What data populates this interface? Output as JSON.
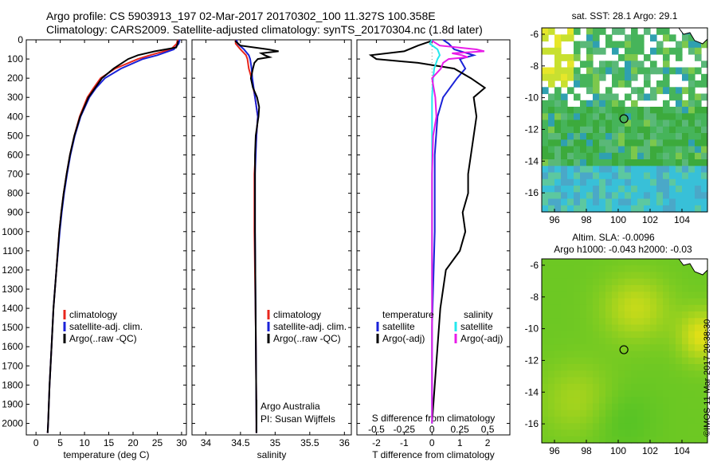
{
  "header": {
    "line1": "Argo profile: CS 5903913_197 02-Mar-2017 20170302_100 11.327S 100.358E",
    "line2": "Climatology: CARS2009. Satellite-adjusted climatology: synTS_20170304.nc (1.8d later)"
  },
  "footer": {
    "stamp": "©IMOS 11-Mar-2017 20:38:30",
    "credit1": "Argo Australia",
    "credit2": "PI: Susan Wijffels"
  },
  "colors": {
    "climatology": "#e8261c",
    "satellite": "#1a22d8",
    "argo": "#000000",
    "sal_satellite": "#25e8ee",
    "sal_argo": "#e81ce8"
  },
  "chart_data": [
    {
      "type": "line",
      "panel": "temperature",
      "xlabel": "temperature (deg C)",
      "ylabel": "",
      "xlim": [
        -2,
        31
      ],
      "ylim": [
        2060,
        0
      ],
      "xticks": [
        0,
        5,
        10,
        15,
        20,
        25,
        30
      ],
      "yticks": [
        0,
        100,
        200,
        300,
        400,
        500,
        600,
        700,
        800,
        900,
        1000,
        1100,
        1200,
        1300,
        1400,
        1500,
        1600,
        1700,
        1800,
        1900,
        2000
      ],
      "legend": [
        "climatology",
        "satellite-adj. clim.",
        "Argo(..raw -QC)"
      ],
      "legend_position": "lower-right",
      "series": [
        {
          "name": "climatology",
          "depth": [
            0,
            20,
            50,
            80,
            100,
            150,
            200,
            250,
            300,
            400,
            500,
            600,
            700,
            800,
            900,
            1000,
            1200,
            1400,
            1600,
            1800,
            2000,
            2050
          ],
          "values": [
            29.2,
            29.0,
            27.8,
            23.5,
            21.0,
            16.3,
            13.3,
            11.9,
            10.6,
            9.0,
            7.9,
            7.0,
            6.3,
            5.7,
            5.2,
            4.8,
            4.2,
            3.6,
            3.2,
            2.8,
            2.5,
            2.4
          ]
        },
        {
          "name": "satellite-adj. clim.",
          "depth": [
            0,
            20,
            50,
            80,
            100,
            150,
            200,
            250,
            300,
            400,
            500,
            600,
            700,
            800,
            900,
            1000,
            1200,
            1400,
            1600,
            1800,
            2000,
            2050
          ],
          "values": [
            29.6,
            29.4,
            28.4,
            25.0,
            22.0,
            17.5,
            14.2,
            12.4,
            11.0,
            9.2,
            8.0,
            7.1,
            6.4,
            5.8,
            5.3,
            4.9,
            4.2,
            3.6,
            3.2,
            2.8,
            2.5,
            2.4
          ]
        },
        {
          "name": "Argo(..raw -QC)",
          "depth": [
            5,
            20,
            40,
            60,
            80,
            100,
            150,
            200,
            250,
            300,
            400,
            500,
            600,
            700,
            800,
            900,
            1000,
            1200,
            1400,
            1600,
            1800,
            2000,
            2050
          ],
          "values": [
            29.3,
            29.2,
            28.9,
            24.5,
            21.0,
            19.0,
            16.0,
            13.6,
            12.2,
            10.8,
            9.1,
            7.9,
            7.0,
            6.3,
            5.7,
            5.2,
            4.8,
            4.2,
            3.6,
            3.2,
            2.8,
            2.5,
            2.4
          ]
        }
      ]
    },
    {
      "type": "line",
      "panel": "salinity",
      "xlabel": "salinity",
      "ylabel": "",
      "xlim": [
        33.8,
        36.1
      ],
      "ylim": [
        2060,
        0
      ],
      "xticks": [
        34,
        34.5,
        35,
        35.5,
        36
      ],
      "legend": [
        "climatology",
        "satellite-adj. clim.",
        "Argo(..raw -QC)"
      ],
      "legend_position": "lower-right",
      "series": [
        {
          "name": "climatology",
          "depth": [
            0,
            20,
            50,
            80,
            100,
            150,
            200,
            300,
            400,
            500,
            700,
            1000,
            1500,
            2000,
            2050
          ],
          "values": [
            34.43,
            34.43,
            34.5,
            34.58,
            34.6,
            34.62,
            34.66,
            34.71,
            34.75,
            34.73,
            34.7,
            34.7,
            34.72,
            34.73,
            34.73
          ]
        },
        {
          "name": "satellite-adj. clim.",
          "depth": [
            0,
            20,
            50,
            80,
            100,
            150,
            200,
            300,
            400,
            500,
            700,
            1000,
            1500,
            2000,
            2050
          ],
          "values": [
            34.44,
            34.46,
            34.55,
            34.62,
            34.64,
            34.66,
            34.67,
            34.71,
            34.75,
            34.73,
            34.71,
            34.71,
            34.72,
            34.73,
            34.73
          ]
        },
        {
          "name": "Argo(..raw -QC)",
          "depth": [
            5,
            30,
            50,
            60,
            70,
            80,
            90,
            100,
            120,
            150,
            200,
            250,
            300,
            350,
            400,
            450,
            500,
            600,
            800,
            1000,
            1500,
            2000,
            2050
          ],
          "values": [
            34.42,
            34.5,
            34.9,
            35.05,
            34.8,
            34.85,
            34.92,
            34.75,
            34.7,
            34.68,
            34.65,
            34.68,
            34.74,
            34.77,
            34.76,
            34.74,
            34.72,
            34.71,
            34.71,
            34.71,
            34.72,
            34.73,
            34.73
          ]
        }
      ]
    },
    {
      "type": "line",
      "panel": "difference",
      "xlabel": "T difference from climatology",
      "xlabel_top": "S difference from climatology",
      "xlim": [
        -2.7,
        2.8
      ],
      "ylim": [
        2060,
        0
      ],
      "xticks": [
        -2,
        -1,
        0,
        1,
        2
      ],
      "xticks_top_labels": [
        "-0.5",
        "-0.25",
        "0",
        "0.25",
        "0.5"
      ],
      "legend": [
        "temperature",
        "satellite",
        "Argo(-adj)",
        "salinity",
        "satellite",
        "Argo(-adj)"
      ],
      "legend_position": "lower-center",
      "series": [
        {
          "name": "satellite",
          "variable": "temperature",
          "depth": [
            0,
            20,
            50,
            80,
            100,
            150,
            200,
            300,
            400,
            600,
            800,
            1000,
            1500,
            2000
          ],
          "values": [
            0.4,
            0.6,
            0.8,
            1.5,
            1.0,
            1.2,
            0.9,
            0.4,
            0.2,
            0.1,
            0.1,
            0.1,
            0.0,
            0.0
          ]
        },
        {
          "name": "Argo(-adj)",
          "variable": "temperature",
          "depth": [
            5,
            30,
            60,
            80,
            100,
            120,
            150,
            200,
            250,
            300,
            400,
            500,
            600,
            700,
            800,
            900,
            1000,
            1100,
            1200,
            1400,
            1600,
            1800,
            2000
          ],
          "values": [
            0.0,
            -0.5,
            -1.0,
            -2.2,
            -2.0,
            -0.5,
            0.8,
            1.4,
            1.9,
            1.5,
            1.6,
            1.5,
            1.4,
            1.3,
            1.3,
            1.1,
            1.2,
            1.0,
            0.5,
            0.3,
            0.2,
            0.1,
            0.0
          ]
        },
        {
          "name": "satellite",
          "variable": "salinity",
          "depth": [
            0,
            20,
            50,
            80,
            100,
            150,
            200,
            300,
            400,
            600,
            800,
            1000,
            1500,
            2000
          ],
          "values": [
            0.0,
            -0.02,
            0.05,
            0.07,
            0.05,
            0.02,
            0.01,
            0.0,
            0.0,
            0.0,
            0.0,
            0.0,
            0.0,
            0.0
          ]
        },
        {
          "name": "Argo(-adj)",
          "variable": "salinity",
          "depth": [
            5,
            30,
            50,
            60,
            70,
            80,
            90,
            100,
            120,
            150,
            200,
            300,
            400,
            500,
            700,
            1000,
            1500,
            2000
          ],
          "values": [
            0.0,
            0.07,
            0.4,
            0.47,
            0.18,
            0.27,
            0.32,
            0.15,
            0.1,
            0.08,
            0.0,
            0.03,
            0.04,
            0.01,
            0.0,
            0.0,
            0.0,
            0.0
          ]
        }
      ]
    },
    {
      "type": "heatmap",
      "panel": "sst-map",
      "title": "sat. SST: 28.1  Argo: 29.1",
      "xlim": [
        95.2,
        105.6
      ],
      "ylim": [
        -17.2,
        -5.6
      ],
      "xticks": [
        96,
        98,
        100,
        102,
        104
      ],
      "yticks": [
        -6,
        -8,
        -10,
        -12,
        -14,
        -16
      ],
      "marker": {
        "lon": 100.358,
        "lat": -11.327
      }
    },
    {
      "type": "heatmap",
      "panel": "sla-map",
      "title": "Altim. SLA: -0.0096",
      "subtitle": "Argo h1000: -0.043 h2000: -0.03",
      "xlim": [
        95.2,
        105.6
      ],
      "ylim": [
        -17.2,
        -5.6
      ],
      "xticks": [
        96,
        98,
        100,
        102,
        104
      ],
      "yticks": [
        -6,
        -8,
        -10,
        -12,
        -14,
        -16
      ],
      "marker": {
        "lon": 100.358,
        "lat": -11.327
      }
    }
  ]
}
